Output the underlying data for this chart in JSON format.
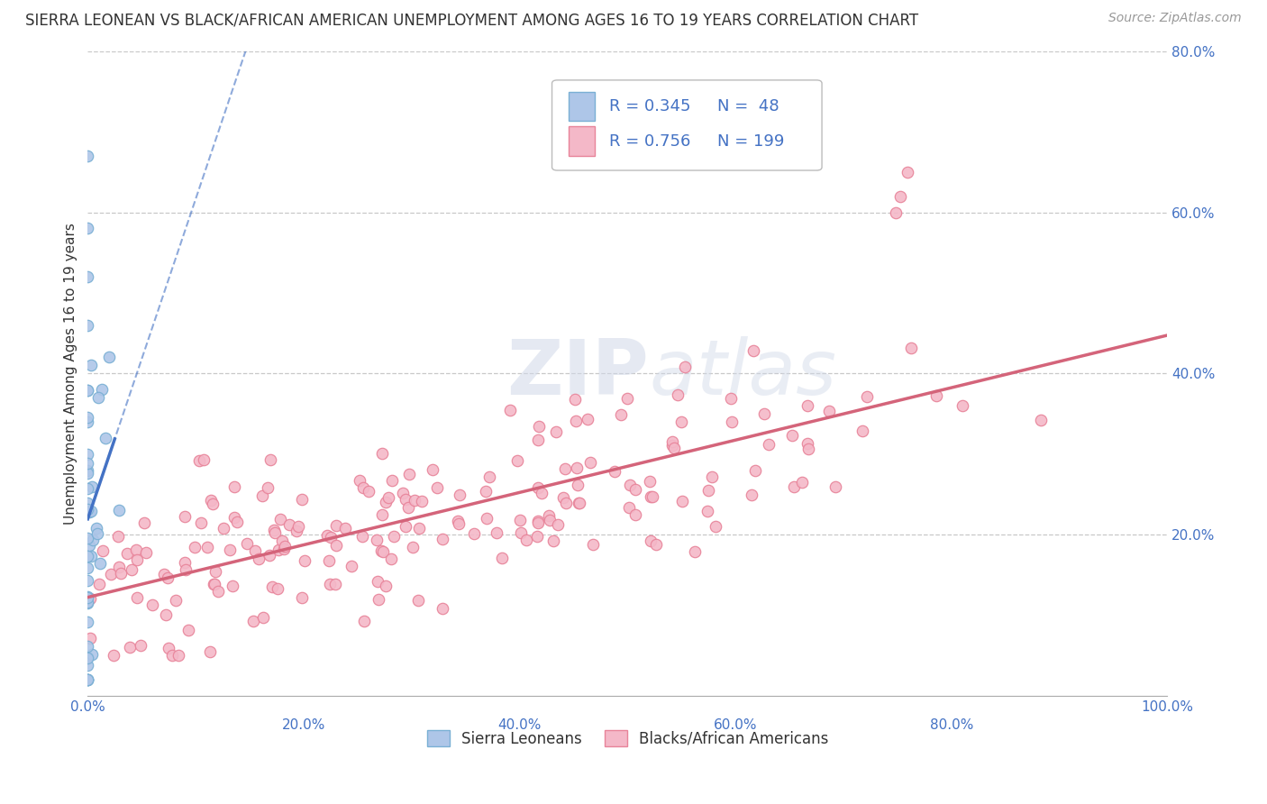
{
  "title": "SIERRA LEONEAN VS BLACK/AFRICAN AMERICAN UNEMPLOYMENT AMONG AGES 16 TO 19 YEARS CORRELATION CHART",
  "source": "Source: ZipAtlas.com",
  "ylabel": "Unemployment Among Ages 16 to 19 years",
  "xlim": [
    0,
    1.0
  ],
  "ylim": [
    0,
    0.8
  ],
  "xticks": [
    0.0,
    0.2,
    0.4,
    0.6,
    0.8,
    1.0
  ],
  "yticks": [
    0.0,
    0.2,
    0.4,
    0.6,
    0.8
  ],
  "xtick_labels_bottom": [
    "0.0%",
    "",
    "",
    "",
    "",
    "100.0%"
  ],
  "xtick_labels_top": [
    "",
    "20.0%",
    "40.0%",
    "60.0%",
    "80.0%",
    ""
  ],
  "ytick_labels_right": [
    "",
    "20.0%",
    "40.0%",
    "60.0%",
    "80.0%"
  ],
  "background_color": "#ffffff",
  "grid_color": "#c8c8c8",
  "legend_R1": "0.345",
  "legend_N1": "48",
  "legend_R2": "0.756",
  "legend_N2": "199",
  "series1_color": "#aec6e8",
  "series1_edge": "#7ab0d4",
  "series2_color": "#f4b8c8",
  "series2_edge": "#e8849a",
  "trend1_color": "#4472c4",
  "trend2_color": "#d4647a",
  "title_fontsize": 12,
  "source_fontsize": 10,
  "axis_label_fontsize": 11,
  "tick_fontsize": 11,
  "legend_fontsize": 13,
  "watermark_zip": "ZIP",
  "watermark_atlas": "atlas",
  "series1_label": "Sierra Leoneans",
  "series2_label": "Blacks/African Americans"
}
